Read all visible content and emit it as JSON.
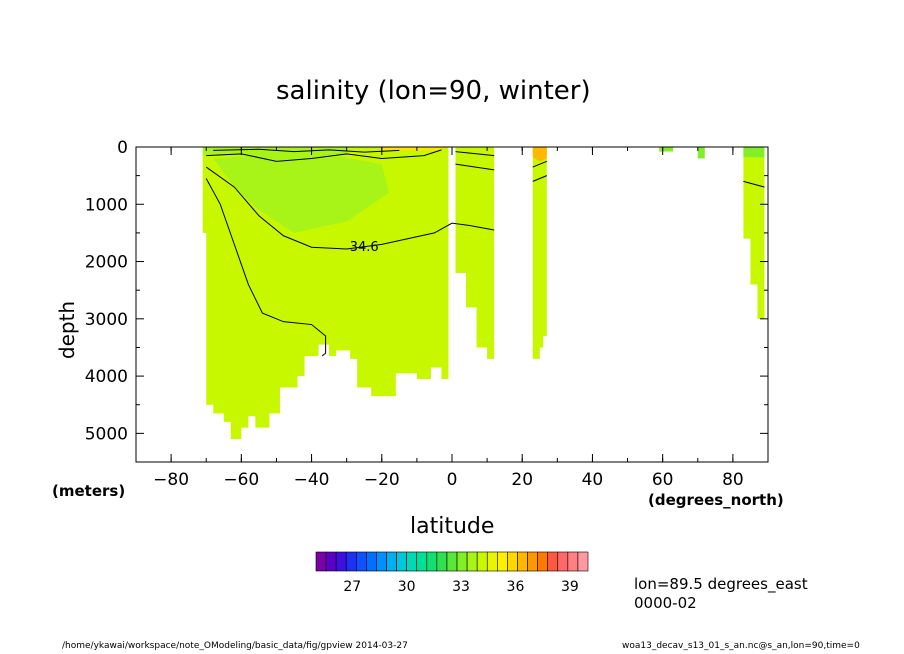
{
  "chart_data": {
    "type": "heatmap",
    "title": "salinity (lon=90, winter)",
    "xlabel": "latitude",
    "ylabel": "depth",
    "x_units": "(degrees_north)",
    "y_units": "(meters)",
    "xlim": [
      -90,
      90
    ],
    "ylim": [
      5500,
      0
    ],
    "x_ticks": [
      -80,
      -60,
      -40,
      -20,
      0,
      20,
      40,
      60,
      80
    ],
    "y_ticks": [
      0,
      1000,
      2000,
      3000,
      4000,
      5000
    ],
    "colorbar": {
      "ticks": [
        27,
        30,
        33,
        36,
        39
      ],
      "range": [
        25,
        40
      ],
      "colors": [
        "#7a00a8",
        "#5c00c8",
        "#3e10e0",
        "#2030f0",
        "#1050ff",
        "#0070ff",
        "#0090ff",
        "#00b0f0",
        "#00c8d8",
        "#00d8b8",
        "#00e098",
        "#10e070",
        "#30e050",
        "#58e838",
        "#80ef28",
        "#a8f418",
        "#c8f800",
        "#e8f400",
        "#fff000",
        "#ffd800",
        "#ffb800",
        "#ff9800",
        "#ff7800",
        "#ff5840",
        "#ff6868",
        "#ff8080",
        "#ff98a0"
      ]
    },
    "contour_labels": [
      {
        "x": -25,
        "y": 1750,
        "text": "34.6"
      }
    ],
    "fields": [
      {
        "name": "~34.5-35",
        "color": "#c8f800"
      },
      {
        "name": "~34-34.5",
        "color": "#a8f418"
      },
      {
        "name": "~33",
        "color": "#80ef28"
      },
      {
        "name": "~37",
        "color": "#ffb800"
      }
    ]
  },
  "info": {
    "lon": "lon=89.5 degrees_east",
    "time": "0000-02"
  },
  "footer": {
    "left": "/home/ykawai/workspace/note_OModeling/basic_data/fig/gpview   2014-03-27",
    "right": "woa13_decav_s13_01_s_an.nc@s_an,lon=90,time=0"
  }
}
